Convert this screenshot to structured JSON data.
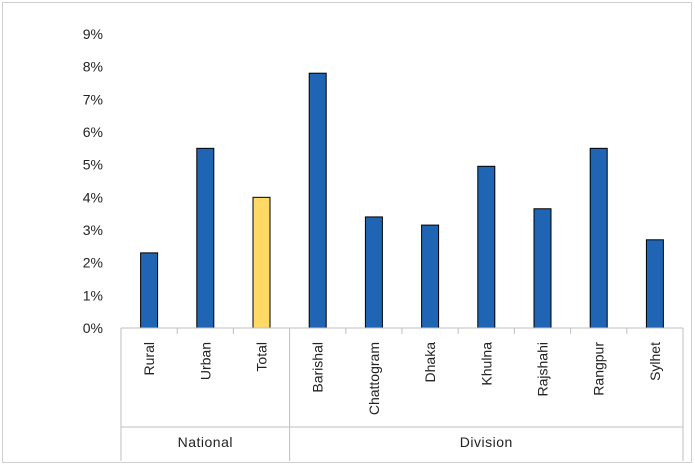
{
  "chart_data": {
    "type": "bar",
    "title": "",
    "xlabel": "",
    "ylabel": "",
    "ylim": [
      0,
      9
    ],
    "yticks": [
      "0%",
      "1%",
      "2%",
      "3%",
      "4%",
      "5%",
      "6%",
      "7%",
      "8%",
      "9%"
    ],
    "grid": false,
    "legend": "none",
    "categories": [
      "Rural",
      "Urban",
      "Total",
      "Barishal",
      "Chattogram",
      "Dhaka",
      "Khulna",
      "Rajshahi",
      "Rangpur",
      "Sylhet"
    ],
    "values": [
      2.3,
      5.5,
      4.0,
      7.8,
      3.4,
      3.15,
      4.95,
      3.65,
      5.5,
      2.7
    ],
    "unit": "%",
    "groups": [
      {
        "name": "National",
        "categories": [
          "Rural",
          "Urban",
          "Total"
        ]
      },
      {
        "name": "Division",
        "categories": [
          "Barishal",
          "Chattogram",
          "Dhaka",
          "Khulna",
          "Rajshahi",
          "Rangpur",
          "Sylhet"
        ]
      }
    ],
    "colors": {
      "default": "#1f65b4",
      "highlight": "#ffd966",
      "highlight_category": "Total",
      "bar_stroke": "#000000",
      "axis": "#bfbfbf"
    }
  }
}
